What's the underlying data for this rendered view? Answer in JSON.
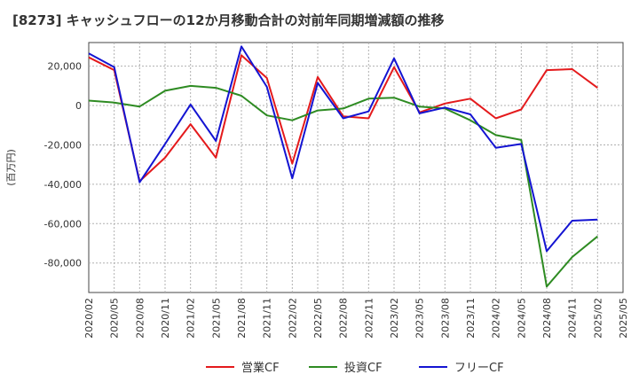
{
  "page": {
    "title": "[8273]  キャッシュフローの12か月移動合計の対前年同期増減額の推移"
  },
  "chart_data": {
    "type": "line",
    "title": "[8273]  キャッシュフローの12か月移動合計の対前年同期増減額の推移",
    "ylabel": "(百万円)",
    "xlabel": "",
    "ylim": [
      -95000,
      32000
    ],
    "yticks": [
      20000,
      0,
      -20000,
      -40000,
      -60000,
      -80000
    ],
    "ytick_labels": [
      "20,000",
      "0",
      "-20,000",
      "-40,000",
      "-60,000",
      "-80,000"
    ],
    "x_tick_labels": [
      "2020/02",
      "2020/05",
      "2020/08",
      "2020/11",
      "2021/02",
      "2021/05",
      "2021/08",
      "2021/11",
      "2022/02",
      "2022/05",
      "2022/08",
      "2022/11",
      "2023/02",
      "2023/05",
      "2023/08",
      "2023/11",
      "2024/02",
      "2024/05",
      "2024/08",
      "2024/11",
      "2025/02",
      "2025/05"
    ],
    "grid": true,
    "legend_position": "bottom",
    "series": [
      {
        "name": "営業CF",
        "color": "#e41a1c",
        "values": [
          24500,
          18000,
          -38500,
          -26500,
          -9500,
          -26500,
          25500,
          14000,
          -29500,
          14500,
          -5500,
          -6500,
          19500,
          -3500,
          1000,
          3500,
          -6500,
          -2000,
          18000,
          18500,
          9000
        ]
      },
      {
        "name": "投資CF",
        "color": "#2e8b22",
        "values": [
          2500,
          1500,
          -500,
          7500,
          10000,
          9000,
          5000,
          -5000,
          -7500,
          -2500,
          -1500,
          3500,
          4000,
          -500,
          -1500,
          -7500,
          -15000,
          -17500,
          -92000,
          -77000,
          -66500
        ]
      },
      {
        "name": "フリーCF",
        "color": "#1414d2",
        "values": [
          26500,
          19500,
          -39000,
          -19500,
          500,
          -18000,
          30000,
          9500,
          -37000,
          11500,
          -6500,
          -3000,
          24000,
          -4000,
          -1000,
          -4500,
          -21500,
          -19500,
          -74000,
          -58500,
          -58000
        ]
      }
    ]
  }
}
